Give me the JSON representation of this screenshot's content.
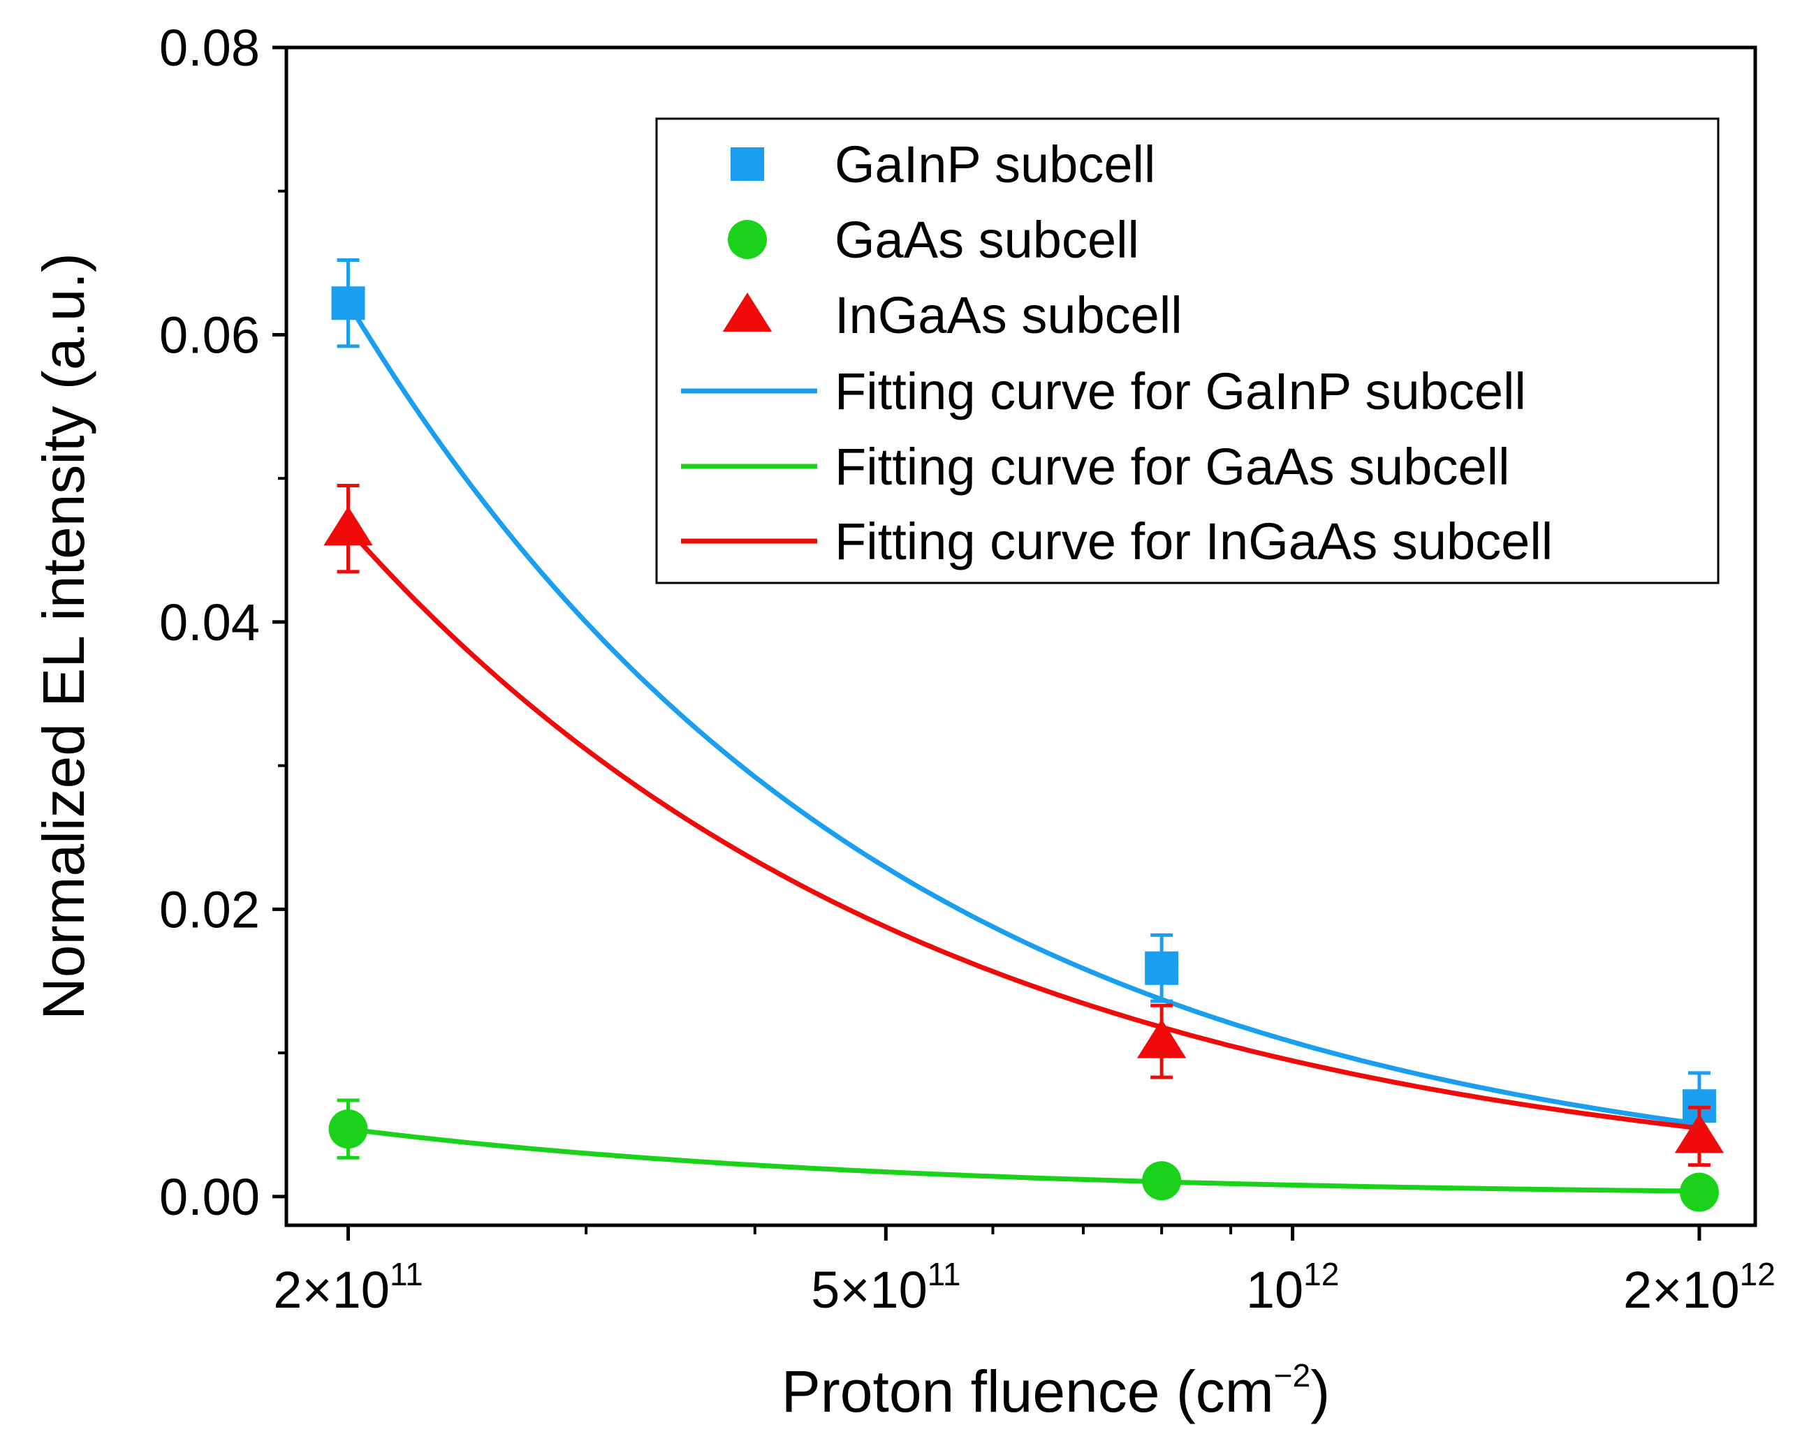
{
  "chart_data": {
    "type": "scatter",
    "xscale": "log",
    "xlim": [
      180000000000.0,
      2200000000000.0
    ],
    "ylim": [
      -0.002,
      0.08
    ],
    "xlabel": "Proton fluence (cm",
    "xlabel_sup": "−2",
    "xlabel_end": ")",
    "ylabel": "Normalized EL intensity (a.u.)",
    "x_major_ticks": [
      {
        "value": 200000000000.0,
        "base": "2×10",
        "exp": "11"
      },
      {
        "value": 500000000000.0,
        "base": "5×10",
        "exp": "11"
      },
      {
        "value": 1000000000000.0,
        "base": "10",
        "exp": "12"
      },
      {
        "value": 2000000000000.0,
        "base": "2×10",
        "exp": "12"
      }
    ],
    "x_minor_ticks": [
      300000000000.0,
      400000000000.0,
      600000000000.0,
      700000000000.0,
      800000000000.0,
      900000000000.0
    ],
    "y_major_ticks": [
      {
        "value": 0.0,
        "label": "0.00"
      },
      {
        "value": 0.02,
        "label": "0.02"
      },
      {
        "value": 0.04,
        "label": "0.04"
      },
      {
        "value": 0.06,
        "label": "0.06"
      },
      {
        "value": 0.08,
        "label": "0.08"
      }
    ],
    "y_minor_ticks": [
      0.01,
      0.03,
      0.05,
      0.07
    ],
    "series": [
      {
        "name": "GaInP subcell",
        "fit_name": "Fitting curve for GaInP subcell",
        "color": "#1a9ef0",
        "marker": "square",
        "x": [
          200000000000.0,
          800000000000.0,
          2000000000000.0
        ],
        "y": [
          0.0622,
          0.0159,
          0.0063
        ],
        "err": [
          0.003,
          0.0023,
          0.0023
        ],
        "fit": {
          "a": 0.0768,
          "b": 1.09
        }
      },
      {
        "name": "GaAs subcell",
        "fit_name": "Fitting curve for GaAs subcell",
        "color": "#19d219",
        "marker": "circle",
        "x": [
          200000000000.0,
          800000000000.0,
          2000000000000.0
        ],
        "y": [
          0.0047,
          0.0011,
          0.0003
        ],
        "err": [
          0.002,
          0.0005,
          0.0005
        ],
        "fit": {
          "a": 0.0057,
          "b": 1.1
        }
      },
      {
        "name": "InGaAs subcell",
        "fit_name": "Fitting curve for InGaAs subcell",
        "color": "#f00a0a",
        "marker": "triangle",
        "x": [
          200000000000.0,
          800000000000.0,
          2000000000000.0
        ],
        "y": [
          0.0465,
          0.0108,
          0.0042
        ],
        "err": [
          0.003,
          0.0025,
          0.002
        ],
        "fit": {
          "a": 0.0549,
          "b": 0.99
        }
      }
    ],
    "legend_position": "top-right"
  }
}
